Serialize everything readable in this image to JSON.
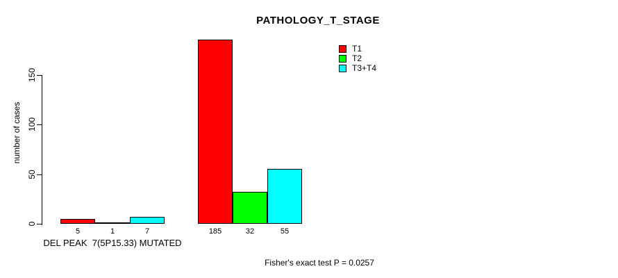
{
  "chart_data": {
    "type": "bar",
    "title": "PATHOLOGY_T_STAGE",
    "ylabel": "number of cases",
    "xlabel": "",
    "ylim": [
      0,
      150
    ],
    "yticks": [
      0,
      50,
      100,
      150
    ],
    "grid": false,
    "legend_position": "top-right",
    "categories": [
      "DEL PEAK  7(5P15.33) MUTATED",
      ""
    ],
    "series": [
      {
        "name": "T1",
        "color": "#ff0000",
        "values": [
          5,
          185
        ]
      },
      {
        "name": "T2",
        "color": "#00ff00",
        "values": [
          1,
          32
        ]
      },
      {
        "name": "T3+T4",
        "color": "#00ffff",
        "values": [
          7,
          55
        ]
      }
    ],
    "bar_value_labels": [
      [
        "5",
        "1",
        "7"
      ],
      [
        "185",
        "32",
        "55"
      ]
    ],
    "annotation": "Fisher's exact test P = 0.0257"
  },
  "colors": {
    "background": "#ffffff",
    "text": "#000000",
    "bar_border": "#000000"
  }
}
